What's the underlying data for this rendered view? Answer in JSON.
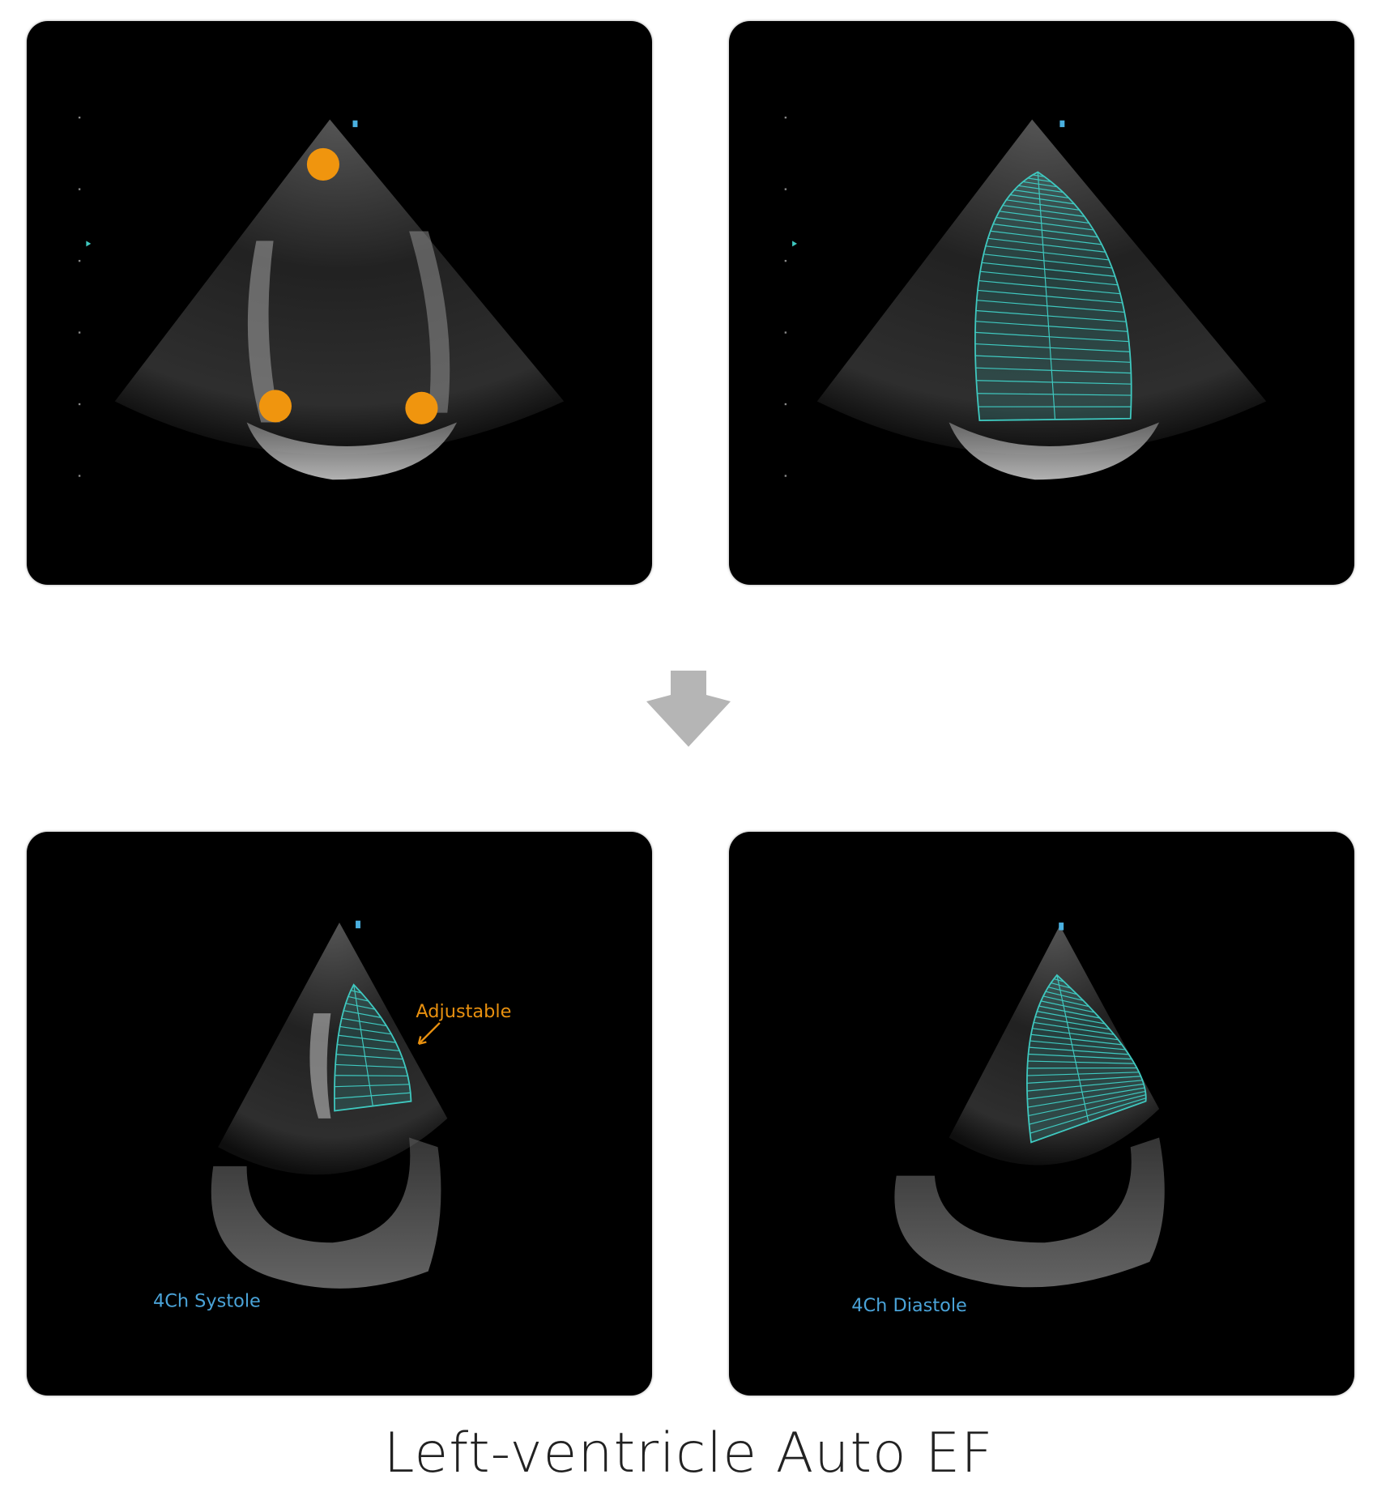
{
  "title": "Left-ventricle Auto EF",
  "panels": [
    {
      "id": "landmark-points",
      "marker_color": "#f0950e"
    },
    {
      "id": "diastole-trace-preview",
      "trace_color": "#3fc9c0"
    },
    {
      "id": "systole",
      "label": "4Ch Systole",
      "annotation": "Adjustable",
      "annotation_color": "#e8900f",
      "label_color": "#4aa3d8"
    },
    {
      "id": "diastole",
      "label": "4Ch Diastole",
      "label_color": "#4aa3d8"
    }
  ],
  "arrow": {
    "icon": "arrow-down-icon",
    "color": "#b5b5b5"
  }
}
